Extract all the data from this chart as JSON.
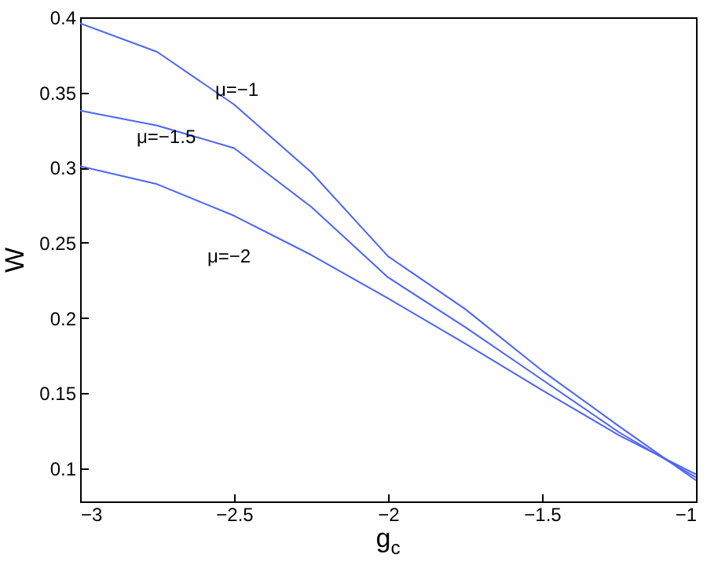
{
  "chart_data": {
    "type": "line",
    "xlabel": "g$_{c}$",
    "ylabel": "W",
    "x": [
      -3,
      -2.75,
      -2.5,
      -2.25,
      -2,
      -1.75,
      -1.5,
      -1.25,
      -1
    ],
    "series": [
      {
        "name": "μ=−1",
        "color": "#4d64f5",
        "values": [
          0.396,
          0.377,
          0.342,
          0.297,
          0.241,
          0.206,
          0.165,
          0.128,
          0.092
        ]
      },
      {
        "name": "μ=−1.5",
        "color": "#4d64f5",
        "values": [
          0.338,
          0.328,
          0.313,
          0.274,
          0.227,
          0.194,
          0.159,
          0.124,
          0.094
        ]
      },
      {
        "name": "μ=−2",
        "color": "#4d64f5",
        "values": [
          0.301,
          0.289,
          0.268,
          0.242,
          0.213,
          0.183,
          0.152,
          0.122,
          0.096
        ]
      }
    ],
    "xlim": [
      -3,
      -1
    ],
    "xticks": [
      {
        "value": -3,
        "label": "−3"
      },
      {
        "value": -2.5,
        "label": "−2.5"
      },
      {
        "value": -2,
        "label": "−2"
      },
      {
        "value": -1.5,
        "label": "−1.5"
      },
      {
        "value": -1,
        "label": "−1"
      }
    ],
    "ylim": [
      0.078,
      0.4
    ],
    "yticks": [
      {
        "value": 0.1,
        "label": "0.1"
      },
      0.15,
      {
        "value": 0.2,
        "label": "0.2"
      },
      0.25,
      {
        "value": 0.3,
        "label": "0.3"
      },
      0.35,
      {
        "value": 0.4,
        "label": "0.4"
      }
    ],
    "grid": false,
    "marker": "none",
    "line_style": "solid"
  }
}
